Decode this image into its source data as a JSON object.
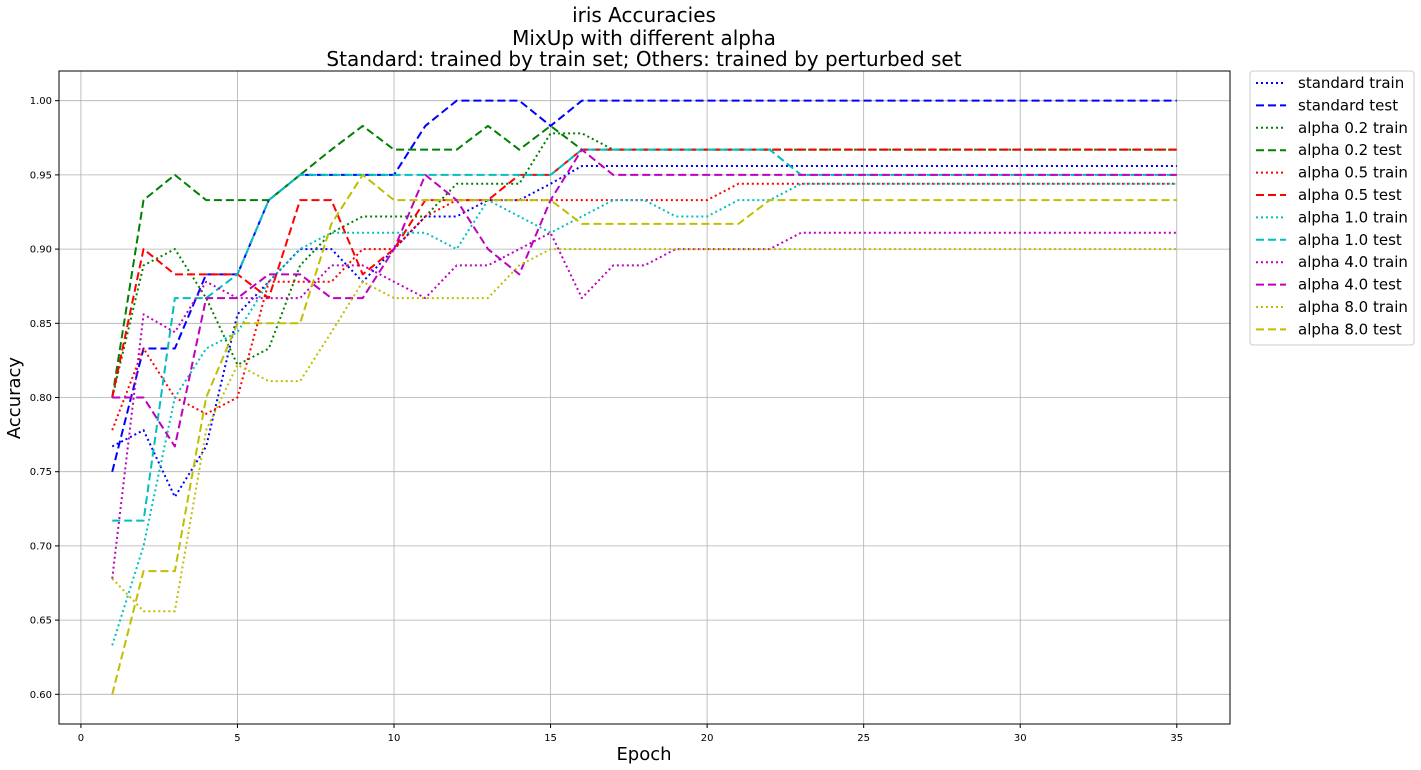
{
  "chart_data": {
    "type": "line",
    "title_lines": [
      "iris Accuracies",
      "MixUp with different alpha",
      "Standard: trained by train set; Others: trained by perturbed set"
    ],
    "xlabel": "Epoch",
    "ylabel": "Accuracy",
    "xlim": [
      -0.7,
      36.7
    ],
    "ylim": [
      0.58,
      1.02
    ],
    "xticks": [
      0,
      5,
      10,
      15,
      20,
      25,
      30,
      35
    ],
    "yticks": [
      0.6,
      0.65,
      0.7,
      0.75,
      0.8,
      0.85,
      0.9,
      0.95,
      1.0
    ],
    "ytick_labels": [
      "0.60",
      "0.65",
      "0.70",
      "0.75",
      "0.80",
      "0.85",
      "0.90",
      "0.95",
      "1.00"
    ],
    "grid": true,
    "legend_position": "outside-top-right",
    "x": [
      1,
      2,
      3,
      4,
      5,
      6,
      7,
      8,
      9,
      10,
      11,
      12,
      13,
      14,
      15,
      16,
      17,
      18,
      19,
      20,
      21,
      22,
      23,
      24,
      25,
      26,
      27,
      28,
      29,
      30,
      31,
      32,
      33,
      34,
      35
    ],
    "series": [
      {
        "name": "standard train",
        "color": "#0000ff",
        "style": "dotted",
        "values": [
          0.767,
          0.778,
          0.733,
          0.767,
          0.856,
          0.878,
          0.9,
          0.9,
          0.878,
          0.9,
          0.922,
          0.922,
          0.933,
          0.933,
          0.944,
          0.956,
          0.956,
          0.956,
          0.956,
          0.956,
          0.956,
          0.956,
          0.956,
          0.956,
          0.956,
          0.956,
          0.956,
          0.956,
          0.956,
          0.956,
          0.956,
          0.956,
          0.956,
          0.956,
          0.956
        ]
      },
      {
        "name": "standard test",
        "color": "#0000ff",
        "style": "dashed",
        "values": [
          0.75,
          0.833,
          0.833,
          0.883,
          0.883,
          0.933,
          0.95,
          0.95,
          0.95,
          0.95,
          0.983,
          1.0,
          1.0,
          1.0,
          0.983,
          1.0,
          1.0,
          1.0,
          1.0,
          1.0,
          1.0,
          1.0,
          1.0,
          1.0,
          1.0,
          1.0,
          1.0,
          1.0,
          1.0,
          1.0,
          1.0,
          1.0,
          1.0,
          1.0,
          1.0
        ]
      },
      {
        "name": "alpha 0.2 train",
        "color": "#008000",
        "style": "dotted",
        "values": [
          0.8,
          0.889,
          0.9,
          0.867,
          0.822,
          0.833,
          0.889,
          0.911,
          0.922,
          0.922,
          0.922,
          0.944,
          0.944,
          0.944,
          0.978,
          0.978,
          0.967,
          0.967,
          0.967,
          0.967,
          0.967,
          0.967,
          0.967,
          0.967,
          0.967,
          0.967,
          0.967,
          0.967,
          0.967,
          0.967,
          0.967,
          0.967,
          0.967,
          0.967,
          0.967
        ]
      },
      {
        "name": "alpha 0.2 test",
        "color": "#008000",
        "style": "dashed",
        "values": [
          0.8,
          0.933,
          0.95,
          0.933,
          0.933,
          0.933,
          0.95,
          0.967,
          0.983,
          0.967,
          0.967,
          0.967,
          0.983,
          0.967,
          0.983,
          0.967,
          0.967,
          0.967,
          0.967,
          0.967,
          0.967,
          0.967,
          0.967,
          0.967,
          0.967,
          0.967,
          0.967,
          0.967,
          0.967,
          0.967,
          0.967,
          0.967,
          0.967,
          0.967,
          0.967
        ]
      },
      {
        "name": "alpha 0.5 train",
        "color": "#ff0000",
        "style": "dotted",
        "values": [
          0.778,
          0.833,
          0.8,
          0.789,
          0.8,
          0.878,
          0.878,
          0.878,
          0.9,
          0.9,
          0.922,
          0.933,
          0.933,
          0.933,
          0.933,
          0.933,
          0.933,
          0.933,
          0.933,
          0.933,
          0.944,
          0.944,
          0.944,
          0.944,
          0.944,
          0.944,
          0.944,
          0.944,
          0.944,
          0.944,
          0.944,
          0.944,
          0.944,
          0.944,
          0.944
        ]
      },
      {
        "name": "alpha 0.5 test",
        "color": "#ff0000",
        "style": "dashed",
        "values": [
          0.8,
          0.9,
          0.883,
          0.883,
          0.883,
          0.867,
          0.933,
          0.933,
          0.883,
          0.9,
          0.933,
          0.933,
          0.933,
          0.95,
          0.95,
          0.967,
          0.967,
          0.967,
          0.967,
          0.967,
          0.967,
          0.967,
          0.967,
          0.967,
          0.967,
          0.967,
          0.967,
          0.967,
          0.967,
          0.967,
          0.967,
          0.967,
          0.967,
          0.967,
          0.967
        ]
      },
      {
        "name": "alpha 1.0 train",
        "color": "#00bfbf",
        "style": "dotted",
        "values": [
          0.633,
          0.7,
          0.8,
          0.833,
          0.844,
          0.878,
          0.9,
          0.911,
          0.911,
          0.911,
          0.911,
          0.9,
          0.933,
          0.922,
          0.911,
          0.922,
          0.933,
          0.933,
          0.922,
          0.922,
          0.933,
          0.933,
          0.944,
          0.944,
          0.944,
          0.944,
          0.944,
          0.944,
          0.944,
          0.944,
          0.944,
          0.944,
          0.944,
          0.944,
          0.944
        ]
      },
      {
        "name": "alpha 1.0 test",
        "color": "#00bfbf",
        "style": "dashed",
        "values": [
          0.717,
          0.717,
          0.867,
          0.867,
          0.883,
          0.933,
          0.95,
          0.95,
          0.95,
          0.95,
          0.95,
          0.95,
          0.95,
          0.95,
          0.95,
          0.967,
          0.967,
          0.967,
          0.967,
          0.967,
          0.967,
          0.967,
          0.95,
          0.95,
          0.95,
          0.95,
          0.95,
          0.95,
          0.95,
          0.95,
          0.95,
          0.95,
          0.95,
          0.95,
          0.95
        ]
      },
      {
        "name": "alpha 4.0 train",
        "color": "#bf00bf",
        "style": "dotted",
        "values": [
          0.678,
          0.856,
          0.844,
          0.878,
          0.867,
          0.867,
          0.867,
          0.889,
          0.889,
          0.878,
          0.867,
          0.889,
          0.889,
          0.9,
          0.911,
          0.867,
          0.889,
          0.889,
          0.9,
          0.9,
          0.9,
          0.9,
          0.911,
          0.911,
          0.911,
          0.911,
          0.911,
          0.911,
          0.911,
          0.911,
          0.911,
          0.911,
          0.911,
          0.911,
          0.911
        ]
      },
      {
        "name": "alpha 4.0 test",
        "color": "#bf00bf",
        "style": "dashed",
        "values": [
          0.8,
          0.8,
          0.767,
          0.867,
          0.867,
          0.883,
          0.883,
          0.867,
          0.867,
          0.9,
          0.95,
          0.933,
          0.9,
          0.883,
          0.933,
          0.967,
          0.95,
          0.95,
          0.95,
          0.95,
          0.95,
          0.95,
          0.95,
          0.95,
          0.95,
          0.95,
          0.95,
          0.95,
          0.95,
          0.95,
          0.95,
          0.95,
          0.95,
          0.95,
          0.95
        ]
      },
      {
        "name": "alpha 8.0 train",
        "color": "#bfbf00",
        "style": "dotted",
        "values": [
          0.678,
          0.656,
          0.656,
          0.778,
          0.822,
          0.811,
          0.811,
          0.844,
          0.878,
          0.867,
          0.867,
          0.867,
          0.867,
          0.889,
          0.9,
          0.9,
          0.9,
          0.9,
          0.9,
          0.9,
          0.9,
          0.9,
          0.9,
          0.9,
          0.9,
          0.9,
          0.9,
          0.9,
          0.9,
          0.9,
          0.9,
          0.9,
          0.9,
          0.9,
          0.9
        ]
      },
      {
        "name": "alpha 8.0 test",
        "color": "#bfbf00",
        "style": "dashed",
        "values": [
          0.6,
          0.683,
          0.683,
          0.8,
          0.85,
          0.85,
          0.85,
          0.917,
          0.95,
          0.933,
          0.933,
          0.933,
          0.933,
          0.933,
          0.933,
          0.917,
          0.917,
          0.917,
          0.917,
          0.917,
          0.917,
          0.933,
          0.933,
          0.933,
          0.933,
          0.933,
          0.933,
          0.933,
          0.933,
          0.933,
          0.933,
          0.933,
          0.933,
          0.933,
          0.933
        ]
      }
    ]
  }
}
